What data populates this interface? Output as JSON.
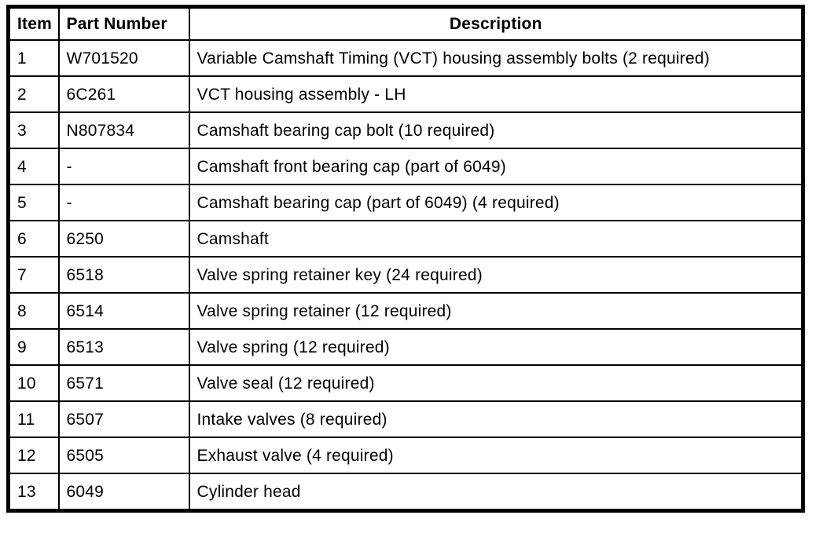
{
  "page": {
    "background_color": "#ffffff",
    "border_color": "#000000",
    "text_color": "#000000"
  },
  "table": {
    "columns": [
      {
        "key": "item",
        "label": "Item"
      },
      {
        "key": "part_number",
        "label": "Part Number"
      },
      {
        "key": "description",
        "label": "Description"
      }
    ],
    "rows": [
      {
        "item": "1",
        "part_number": "W701520",
        "description": "Variable Camshaft Timing (VCT) housing assembly bolts (2 required)"
      },
      {
        "item": "2",
        "part_number": "6C261",
        "description": "VCT housing assembly - LH"
      },
      {
        "item": "3",
        "part_number": "N807834",
        "description": "Camshaft bearing cap bolt (10 required)"
      },
      {
        "item": "4",
        "part_number": "-",
        "description": "Camshaft front bearing cap (part of 6049)"
      },
      {
        "item": "5",
        "part_number": "-",
        "description": "Camshaft bearing cap (part of 6049) (4 required)"
      },
      {
        "item": "6",
        "part_number": "6250",
        "description": "Camshaft"
      },
      {
        "item": "7",
        "part_number": "6518",
        "description": "Valve spring retainer key (24 required)"
      },
      {
        "item": "8",
        "part_number": "6514",
        "description": "Valve spring retainer (12 required)"
      },
      {
        "item": "9",
        "part_number": "6513",
        "description": "Valve spring (12 required)"
      },
      {
        "item": "10",
        "part_number": "6571",
        "description": "Valve seal (12 required)"
      },
      {
        "item": "11",
        "part_number": "6507",
        "description": "Intake valves (8 required)"
      },
      {
        "item": "12",
        "part_number": "6505",
        "description": "Exhaust valve (4 required)"
      },
      {
        "item": "13",
        "part_number": "6049",
        "description": "Cylinder head"
      }
    ]
  }
}
